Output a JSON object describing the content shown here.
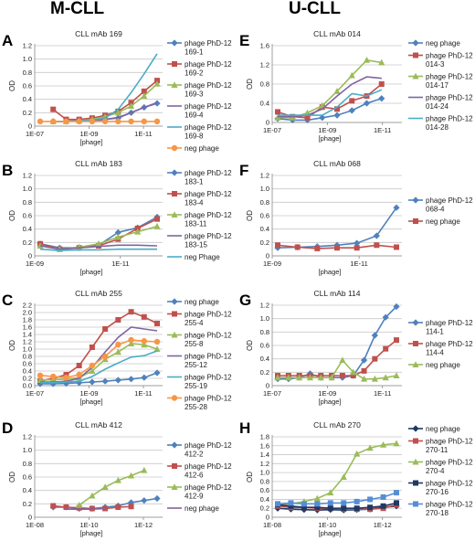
{
  "columns": [
    "M-CLL",
    "U-CLL"
  ],
  "chart_data": [
    {
      "letter": "A",
      "type": "line",
      "title": "CLL mAb 169",
      "xlabel": "[phage]",
      "ylabel": "OD",
      "ylim": [
        0,
        1.2
      ],
      "yticks": [
        "0",
        "0.2",
        "0.4",
        "0.6",
        "0.8",
        "1.0",
        "1.2"
      ],
      "xticks": [
        "1E-07",
        "1E-09",
        "1E-11"
      ],
      "grid": true,
      "legend": "right",
      "series": [
        {
          "name": "phage PhD-12 169-1",
          "color": "#4f81bd",
          "marker": "diamond",
          "values": [
            null,
            0.07,
            0.07,
            0.08,
            0.09,
            0.1,
            0.12,
            0.2,
            0.28,
            0.34
          ]
        },
        {
          "name": "phage PhD-12 169-2",
          "color": "#c0504d",
          "marker": "square",
          "values": [
            null,
            0.25,
            0.1,
            0.1,
            0.12,
            0.16,
            0.22,
            0.35,
            0.52,
            0.68
          ]
        },
        {
          "name": "phage PhD-12 169-3",
          "color": "#9bbb59",
          "marker": "triangle",
          "values": [
            null,
            0.07,
            0.07,
            0.08,
            0.1,
            0.14,
            0.2,
            0.3,
            0.45,
            0.63
          ]
        },
        {
          "name": "phage PhD-12 169-4",
          "color": "#8064a2",
          "marker": "line",
          "values": [
            null,
            0.07,
            0.07,
            0.08,
            0.08,
            0.1,
            0.13,
            0.2,
            0.28,
            0.35
          ]
        },
        {
          "name": "phage PhD-12 169-8",
          "color": "#4bacc6",
          "marker": "line",
          "values": [
            null,
            0.07,
            0.07,
            0.08,
            0.09,
            0.12,
            0.25,
            0.5,
            0.78,
            1.08
          ]
        },
        {
          "name": "neg phage",
          "color": "#f79646",
          "marker": "circle",
          "values": [
            0.07,
            0.07,
            0.07,
            0.07,
            0.07,
            0.07,
            0.07,
            0.07,
            0.07,
            0.07
          ]
        }
      ]
    },
    {
      "letter": "B",
      "type": "line",
      "title": "CLL mAb 183",
      "xlabel": "[phage]",
      "ylabel": "OD",
      "ylim": [
        0,
        1.2
      ],
      "yticks": [
        "0",
        "0.2",
        "0.4",
        "0.6",
        "0.8",
        "1.0",
        "1.2"
      ],
      "xticks": [
        "1E-09",
        "1E-11"
      ],
      "grid": true,
      "legend": "right",
      "series": [
        {
          "name": "phage PhD-12 183-1",
          "color": "#4f81bd",
          "marker": "diamond",
          "values": [
            0.18,
            0.12,
            0.12,
            0.16,
            0.35,
            0.42,
            0.58
          ]
        },
        {
          "name": "phage PhD-12 183-4",
          "color": "#c0504d",
          "marker": "square",
          "values": [
            0.18,
            0.1,
            0.12,
            0.15,
            0.25,
            0.41,
            0.55
          ]
        },
        {
          "name": "phage PhD-12 183-11",
          "color": "#9bbb59",
          "marker": "triangle",
          "values": [
            0.15,
            0.1,
            0.13,
            0.18,
            0.28,
            0.36,
            0.44
          ]
        },
        {
          "name": "phage PhD-12 183-15",
          "color": "#8064a2",
          "marker": "line",
          "values": [
            0.15,
            0.1,
            0.12,
            0.14,
            0.16,
            0.16,
            0.15
          ]
        },
        {
          "name": "neg Phage",
          "color": "#4bacc6",
          "marker": "line",
          "values": [
            0.1,
            0.08,
            0.09,
            0.09,
            0.1,
            0.1,
            0.1
          ]
        }
      ]
    },
    {
      "letter": "C",
      "type": "line",
      "title": "CLL mAb 255",
      "xlabel": "[phage]",
      "ylabel": "OD",
      "ylim": [
        0,
        2.2
      ],
      "yticks": [
        "0.0",
        "0.2",
        "0.4",
        "0.6",
        "0.8",
        "1.0",
        "1.2",
        "1.4",
        "1.6",
        "1.8",
        "2.0",
        "2.2"
      ],
      "xticks": [
        "1E-07",
        "1E-09",
        "1E-11"
      ],
      "grid": true,
      "legend": "right",
      "series": [
        {
          "name": "neg phage",
          "color": "#4f81bd",
          "marker": "diamond",
          "values": [
            0.05,
            0.05,
            0.06,
            0.08,
            0.1,
            0.12,
            0.15,
            0.18,
            0.22,
            0.35
          ]
        },
        {
          "name": "phage PhD-12 255-4",
          "color": "#c0504d",
          "marker": "square",
          "values": [
            0.12,
            0.2,
            0.3,
            0.55,
            1.05,
            1.55,
            1.8,
            2.02,
            1.88,
            1.7
          ]
        },
        {
          "name": "phage PhD-12 255-8",
          "color": "#9bbb59",
          "marker": "triangle",
          "values": [
            0.15,
            0.16,
            0.18,
            0.22,
            0.4,
            0.72,
            0.92,
            1.15,
            1.12,
            1.0
          ]
        },
        {
          "name": "phage PhD-12 255-12",
          "color": "#8064a2",
          "marker": "line",
          "values": [
            0.1,
            0.1,
            0.12,
            0.2,
            0.5,
            0.92,
            1.32,
            1.6,
            1.55,
            1.5
          ]
        },
        {
          "name": "phage PhD-12 255-19",
          "color": "#4bacc6",
          "marker": "line",
          "values": [
            0.08,
            0.08,
            0.1,
            0.12,
            0.25,
            0.45,
            0.62,
            0.78,
            0.82,
            0.95
          ]
        },
        {
          "name": "phage PhD-12 255-28",
          "color": "#f79646",
          "marker": "circle",
          "values": [
            0.28,
            0.25,
            0.22,
            0.3,
            0.55,
            0.8,
            1.12,
            1.25,
            1.22,
            1.2
          ]
        }
      ]
    },
    {
      "letter": "D",
      "type": "line",
      "title": "CLL mAb 412",
      "xlabel": "[phage]",
      "ylabel": "OD",
      "ylim": [
        0,
        1.2
      ],
      "yticks": [
        "0",
        "0.2",
        "0.4",
        "0.6",
        "0.8",
        "1.0",
        "1.2"
      ],
      "xticks": [
        "1E-08",
        "1E-10",
        "1E-12"
      ],
      "grid": true,
      "legend": "right",
      "series": [
        {
          "name": "phage PhD-12 412-2",
          "color": "#4f81bd",
          "marker": "diamond",
          "values": [
            null,
            0.15,
            0.15,
            0.13,
            0.13,
            0.15,
            0.17,
            0.22,
            0.25,
            0.28
          ]
        },
        {
          "name": "phage PhD-12 412-6",
          "color": "#c0504d",
          "marker": "square",
          "values": [
            null,
            0.17,
            0.15,
            0.14,
            0.13,
            0.13,
            0.15,
            0.16,
            null,
            null
          ]
        },
        {
          "name": "phage PhD-12 412-9",
          "color": "#9bbb59",
          "marker": "triangle",
          "values": [
            null,
            null,
            null,
            0.18,
            0.32,
            0.45,
            0.55,
            0.62,
            0.7,
            null
          ]
        },
        {
          "name": "neg phage",
          "color": "#8064a2",
          "marker": "line",
          "values": [
            null,
            null,
            0.12,
            0.12,
            0.12,
            0.13,
            null,
            null,
            null,
            null
          ]
        }
      ]
    },
    {
      "letter": "E",
      "type": "line",
      "title": "CLL mAb 014",
      "xlabel": "[phage]",
      "ylabel": "OD",
      "ylim": [
        0,
        1.6
      ],
      "yticks": [
        "0",
        "0.4",
        "0.8",
        "1.2",
        "1.6"
      ],
      "xticks": [
        "1E-07",
        "1E-09",
        "1E-11"
      ],
      "grid": true,
      "legend": "right",
      "series": [
        {
          "name": "neg phage",
          "color": "#4f81bd",
          "marker": "diamond",
          "values": [
            0.08,
            0.05,
            0.05,
            0.1,
            0.15,
            0.25,
            0.4,
            0.5,
            null
          ]
        },
        {
          "name": "phage PhD-12 014-3",
          "color": "#c0504d",
          "marker": "square",
          "values": [
            0.22,
            0.12,
            0.1,
            0.32,
            0.28,
            0.45,
            0.55,
            0.8,
            null
          ]
        },
        {
          "name": "phage PhD-12 014-17",
          "color": "#9bbb59",
          "marker": "triangle",
          "values": [
            0.1,
            0.1,
            0.2,
            0.35,
            0.65,
            0.98,
            1.3,
            1.25,
            null
          ]
        },
        {
          "name": "phage PhD-12 014-24",
          "color": "#8064a2",
          "marker": "line",
          "values": [
            0.12,
            0.12,
            0.15,
            0.28,
            0.55,
            0.8,
            0.95,
            0.92,
            null
          ]
        },
        {
          "name": "phage PhD-12 014-28",
          "color": "#4bacc6",
          "marker": "line",
          "values": [
            0.15,
            0.15,
            0.15,
            0.15,
            0.32,
            0.6,
            0.55,
            0.68,
            null
          ]
        }
      ]
    },
    {
      "letter": "F",
      "type": "line",
      "title": "CLL mAb 068",
      "xlabel": "[phage]",
      "ylabel": "OD",
      "ylim": [
        0,
        1.2
      ],
      "yticks": [
        "0",
        "0.2",
        "0.4",
        "0.6",
        "0.8",
        "1.0",
        "1.2"
      ],
      "xticks": [
        "1E-09",
        "1E-11"
      ],
      "grid": true,
      "legend": "right",
      "series": [
        {
          "name": "phage PhD-12 068-4",
          "color": "#4f81bd",
          "marker": "diamond",
          "values": [
            0.12,
            0.13,
            0.14,
            0.16,
            0.19,
            0.3,
            0.72
          ]
        },
        {
          "name": "neg phage",
          "color": "#c0504d",
          "marker": "square",
          "values": [
            0.16,
            0.13,
            0.11,
            0.12,
            0.12,
            0.16,
            0.13
          ]
        }
      ]
    },
    {
      "letter": "G",
      "type": "line",
      "title": "CLL mAb 114",
      "xlabel": "[phage]",
      "ylabel": "OD",
      "ylim": [
        0,
        1.2
      ],
      "yticks": [
        "0",
        "0.2",
        "0.4",
        "0.6",
        "0.8",
        "1.0",
        "1.2"
      ],
      "xticks": [
        "1E-07",
        "1E-09",
        "1E-11"
      ],
      "grid": true,
      "legend": "right",
      "series": [
        {
          "name": "phage PhD-12 114-1",
          "color": "#4f81bd",
          "marker": "diamond",
          "values": [
            0.1,
            0.1,
            0.12,
            0.18,
            0.12,
            0.12,
            0.12,
            0.15,
            0.38,
            0.75,
            1.02,
            1.18
          ]
        },
        {
          "name": "phage PhD-12 114-4",
          "color": "#c0504d",
          "marker": "square",
          "values": [
            0.15,
            0.15,
            0.15,
            0.15,
            0.15,
            0.15,
            0.15,
            0.15,
            0.22,
            0.4,
            0.55,
            0.68
          ]
        },
        {
          "name": "neg phage",
          "color": "#9bbb59",
          "marker": "triangle",
          "values": [
            0.12,
            0.12,
            0.12,
            0.12,
            0.12,
            0.12,
            0.38,
            0.2,
            0.1,
            0.1,
            0.12,
            0.15
          ]
        }
      ]
    },
    {
      "letter": "H",
      "type": "line",
      "title": "CLL mAb 270",
      "xlabel": "[phage]",
      "ylabel": "OD",
      "ylim": [
        0,
        1.8
      ],
      "yticks": [
        "0",
        "0.2",
        "0.4",
        "0.6",
        "0.8",
        "1.0",
        "1.2",
        "1.4",
        "1.6",
        "1.8"
      ],
      "xticks": [
        "1E-08",
        "1E-10",
        "1E-12"
      ],
      "grid": true,
      "legend": "right",
      "series": [
        {
          "name": "neg phage",
          "color": "#1f3864",
          "marker": "diamond",
          "values": [
            0.2,
            0.18,
            0.17,
            0.16,
            0.17,
            0.16,
            0.17,
            0.18,
            0.22,
            0.25
          ]
        },
        {
          "name": "phage PhD-12 270-11",
          "color": "#c0504d",
          "marker": "square",
          "values": [
            0.25,
            0.22,
            0.22,
            0.2,
            0.2,
            0.18,
            0.18,
            0.18,
            0.2,
            0.28
          ]
        },
        {
          "name": "phage PhD-12 270-4",
          "color": "#9bbb59",
          "marker": "triangle",
          "values": [
            0.28,
            0.3,
            0.35,
            0.42,
            0.55,
            0.9,
            1.42,
            1.55,
            1.62,
            1.65
          ]
        },
        {
          "name": "phage PhD-12 270-16",
          "color": "#203864",
          "marker": "square",
          "values": [
            0.28,
            0.25,
            0.22,
            0.22,
            0.2,
            0.2,
            0.2,
            0.22,
            0.25,
            0.32
          ]
        },
        {
          "name": "phage PhD-12 270-18",
          "color": "#558ed5",
          "marker": "square",
          "values": [
            0.3,
            0.32,
            0.3,
            0.3,
            0.32,
            0.32,
            0.35,
            0.4,
            0.45,
            0.55
          ]
        }
      ]
    }
  ]
}
